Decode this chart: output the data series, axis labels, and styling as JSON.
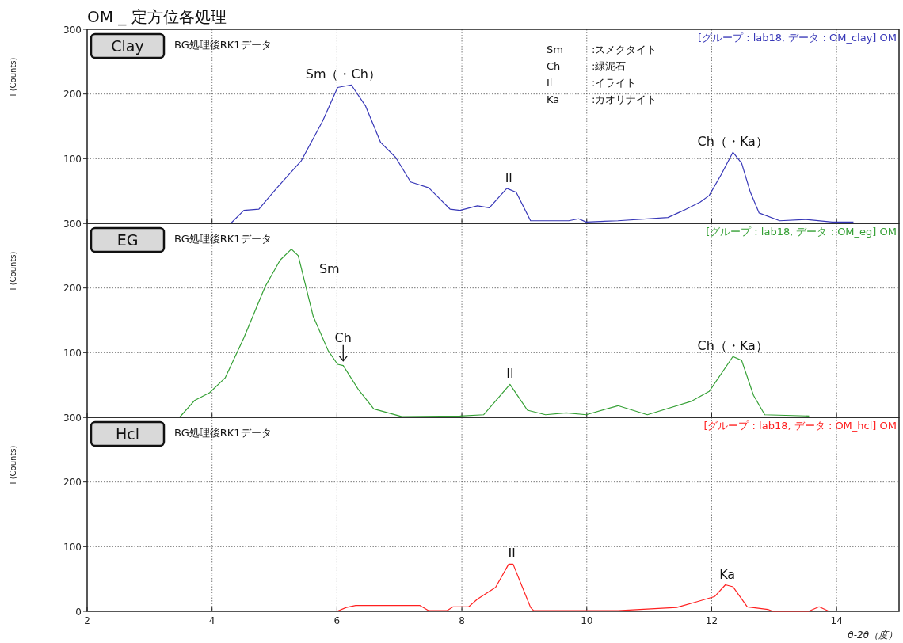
{
  "chart_data": [
    {
      "type": "line",
      "title": "OM _ 定方位各処理",
      "subtitle": "Clay",
      "ylabel": "I (Counts)",
      "xlim": [
        2,
        15
      ],
      "xticks": [
        2,
        4,
        6,
        8,
        10,
        12,
        14
      ],
      "ylim": [
        0,
        300
      ],
      "yticks": [
        {
          "value": 0,
          "label": null
        },
        100,
        200,
        300
      ],
      "tick_labels": "y",
      "grid": true,
      "series": [
        {
          "color": "#3838b8",
          "x": [
            4.3,
            4.51,
            4.75,
            5.04,
            5.43,
            5.77,
            6.01,
            6.23,
            6.46,
            6.7,
            6.94,
            7.18,
            7.47,
            7.81,
            7.97,
            8.25,
            8.44,
            8.72,
            8.87,
            9.1,
            9.71,
            9.87,
            9.99,
            10.5,
            11.3,
            11.55,
            11.82,
            11.96,
            12.15,
            12.34,
            12.48,
            12.62,
            12.76,
            13.09,
            13.51,
            13.93,
            14.27
          ],
          "values": [
            0,
            20,
            22,
            55,
            97,
            158,
            210,
            214,
            181,
            125,
            102,
            64,
            55,
            22,
            20,
            27,
            24,
            54,
            48,
            4,
            4,
            7,
            2,
            4,
            9,
            20,
            33,
            43,
            75,
            110,
            93,
            48,
            16,
            4,
            6,
            2,
            2
          ]
        }
      ],
      "annotations": [
        "BG処理後RK1データ",
        "[グループ : lab18, データ : OM_clay] OM",
        {
          "text": "Sm（・Ch）",
          "x": 6.1,
          "y": 214
        },
        {
          "text": "Il",
          "x": 8.75,
          "y": 54
        },
        {
          "text": "Ch（・Ka）",
          "x": 12.34,
          "y": 110
        },
        "Sm",
        ":スメクタイト",
        "Ch",
        ":緑泥石",
        "Il",
        ":イライト",
        "Ka",
        ":カオリナイト"
      ]
    },
    {
      "type": "line",
      "subtitle": "EG",
      "ylabel": "I (Counts)",
      "xlim": [
        2,
        15
      ],
      "xticks": [
        2,
        4,
        6,
        8,
        10,
        12,
        14
      ],
      "ylim": [
        0,
        300
      ],
      "yticks": [
        {
          "value": 0,
          "label": null
        },
        100,
        200,
        300
      ],
      "tick_labels": "y",
      "grid": true,
      "series": [
        {
          "color": "#35a035",
          "x": [
            3.48,
            3.72,
            3.96,
            4.21,
            4.51,
            4.85,
            5.09,
            5.27,
            5.38,
            5.62,
            5.86,
            6.01,
            6.1,
            6.35,
            6.59,
            7.04,
            7.97,
            8.35,
            8.77,
            9.05,
            9.34,
            9.67,
            9.99,
            10.5,
            10.97,
            11.68,
            11.96,
            12.34,
            12.48,
            12.67,
            12.85,
            13.56
          ],
          "values": [
            0,
            26,
            38,
            61,
            123,
            202,
            243,
            260,
            250,
            156,
            103,
            82,
            80,
            42,
            13,
            1,
            2,
            4,
            51,
            11,
            4,
            7,
            4,
            18,
            4,
            25,
            40,
            94,
            88,
            34,
            4,
            2
          ]
        }
      ],
      "annotations": [
        "BG処理後RK1データ",
        "[グループ : lab18, データ : OM_eg] OM",
        {
          "text": "Sm",
          "x": 5.27,
          "y": 260
        },
        {
          "text": "Ch",
          "x": 6.1,
          "y": 80
        },
        {
          "text": "Il",
          "x": 8.77,
          "y": 51
        },
        {
          "text": "Ch（・Ka）",
          "x": 12.34,
          "y": 94
        }
      ]
    },
    {
      "type": "line",
      "subtitle": "Hcl",
      "xlabel": "θ-2θ（度）",
      "ylabel": "I (Counts)",
      "xlim": [
        2,
        15
      ],
      "xticks": [
        2,
        4,
        6,
        8,
        10,
        12,
        14
      ],
      "ylim": [
        0,
        300
      ],
      "yticks": [
        0,
        100,
        200,
        300
      ],
      "grid": true,
      "series": [
        {
          "color": "#ff2020",
          "x": [
            6.0,
            6.15,
            6.3,
            6.78,
            7.33,
            7.47,
            7.76,
            7.86,
            8.11,
            8.25,
            8.54,
            8.75,
            8.82,
            9.1,
            9.15,
            10.5,
            11.44,
            11.77,
            12.05,
            12.22,
            12.34,
            12.57,
            12.9,
            12.98,
            13.55,
            13.72,
            13.88
          ],
          "values": [
            0,
            6,
            9,
            9,
            9,
            1,
            1,
            7,
            7,
            19,
            37,
            73,
            73,
            6,
            1,
            1,
            6,
            15,
            23,
            41,
            38,
            7,
            3,
            0,
            0,
            7,
            0
          ]
        }
      ],
      "annotations": [
        "BG処理後RK1データ",
        "[グループ : lab18, データ : OM_hcl] OM",
        {
          "text": "Il",
          "x": 8.8,
          "y": 73
        },
        {
          "text": "Ka",
          "x": 12.25,
          "y": 41
        }
      ]
    }
  ]
}
